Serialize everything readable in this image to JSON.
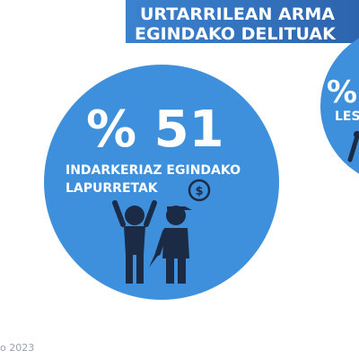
{
  "header": {
    "lines": [
      "URTARRILEAN ARMA",
      "EGINDAKO DELITUAK"
    ]
  },
  "circles": [
    {
      "value": "% 51",
      "label_lines": [
        "INDARKERIAZ EGINDAKO",
        "LAPURRETAK"
      ]
    },
    {
      "value": "%",
      "label_lines": [
        "LES"
      ]
    }
  ],
  "footer": "o 2023"
}
